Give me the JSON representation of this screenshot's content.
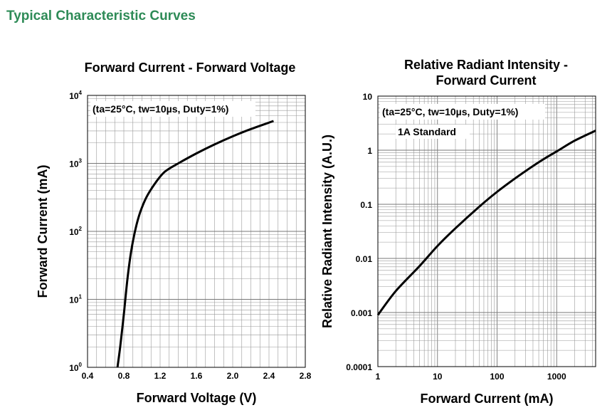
{
  "page": {
    "heading": "Typical Characteristic Curves"
  },
  "chart_data": [
    {
      "type": "line",
      "title": "Forward Current - Forward Voltage",
      "xlabel": "Forward Voltage (V)",
      "ylabel": "Forward Current (mA)",
      "xscale": "linear",
      "yscale": "log",
      "xlim": [
        0.4,
        2.8
      ],
      "ylim": [
        1,
        10000
      ],
      "grid": true,
      "annotation": "(ta=25°C, tw=10µs, Duty=1%)",
      "x_ticks": [
        "0.4",
        "0.8",
        "1.2",
        "1.6",
        "2.0",
        "2.4",
        "2.8"
      ],
      "y_ticks": [
        {
          "base": "10",
          "exp": "0"
        },
        {
          "base": "10",
          "exp": "1"
        },
        {
          "base": "10",
          "exp": "2"
        },
        {
          "base": "10",
          "exp": "3"
        },
        {
          "base": "10",
          "exp": "4"
        }
      ],
      "series": [
        {
          "x": [
            0.73,
            0.76,
            0.8,
            0.84,
            0.88,
            0.93,
            0.98,
            1.05,
            1.15,
            1.25,
            1.4,
            1.6,
            1.8,
            2.0,
            2.2,
            2.45
          ],
          "y": [
            1,
            2,
            6,
            20,
            50,
            110,
            190,
            320,
            520,
            750,
            1000,
            1400,
            1900,
            2500,
            3200,
            4200
          ]
        }
      ],
      "colors": {
        "line": "#000000",
        "grid": "#999999"
      }
    },
    {
      "type": "line",
      "title": "Relative Radiant Intensity - Forward Current",
      "title_lines": [
        "Relative Radiant Intensity -",
        "Forward Current"
      ],
      "xlabel": "Forward Current (mA)",
      "ylabel": "Relative Radiant Intensity (A.U.)",
      "xscale": "log",
      "yscale": "log",
      "xlim": [
        1,
        4500
      ],
      "ylim": [
        0.0001,
        10
      ],
      "grid": true,
      "annotations": [
        "(ta=25°C, tw=10µs, Duty=1%)",
        "1A Standard"
      ],
      "x_ticks": [
        "1",
        "10",
        "100",
        "1000"
      ],
      "y_ticks": [
        "0.0001",
        "0.001",
        "0.01",
        "0.1",
        "1",
        "10"
      ],
      "series": [
        {
          "x": [
            1,
            2,
            5,
            10,
            20,
            50,
            100,
            200,
            500,
            1000,
            2000,
            4500
          ],
          "y": [
            0.0009,
            0.0025,
            0.0072,
            0.017,
            0.036,
            0.09,
            0.17,
            0.3,
            0.6,
            0.95,
            1.5,
            2.3
          ]
        }
      ],
      "colors": {
        "line": "#000000",
        "grid": "#999999"
      }
    }
  ]
}
